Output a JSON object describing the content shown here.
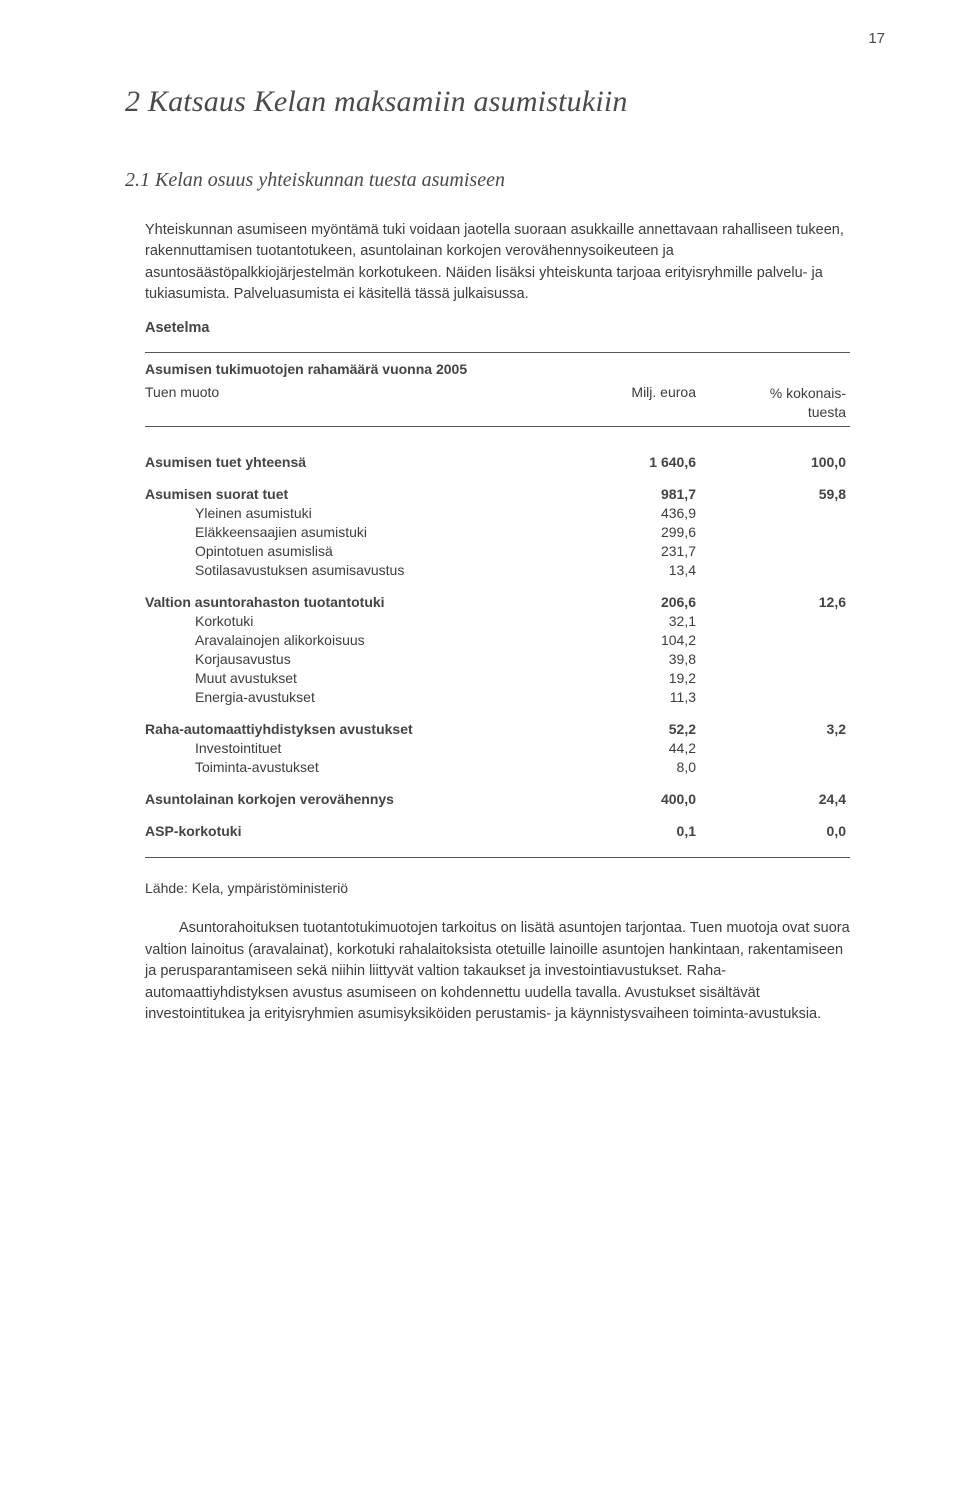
{
  "page_number": "17",
  "chapter_title": "2   Katsaus Kelan maksamiin asumistukiin",
  "section_title": "2.1 Kelan osuus yhteiskunnan tuesta asumiseen",
  "paragraph_1": "Yhteiskunnan asumiseen myöntämä tuki voidaan jaotella suoraan asukkaille annettavaan rahalliseen tukeen, rakennuttamisen tuotantotukeen, asuntolainan korkojen verovähennysoikeuteen ja asuntosäästöpalkkiojärjestelmän korkotukeen. Näiden lisäksi yhteiskunta tarjoaa erityisryhmille palvelu- ja tukiasumista. Palveluasumista ei käsitellä tässä julkaisussa.",
  "asetelma_label": "Asetelma",
  "table": {
    "caption": "Asumisen tukimuotojen rahamäärä vuonna 2005",
    "col_label": "Tuen muoto",
    "col_v1": "Milj. euroa",
    "col_v2_line1": "% kokonais-",
    "col_v2_line2": "tuesta",
    "groups": [
      {
        "bold": true,
        "label": "Asumisen tuet yhteensä",
        "v1": "1 640,6",
        "v2": "100,0",
        "rows": []
      },
      {
        "bold": true,
        "label": "Asumisen suorat tuet",
        "v1": "981,7",
        "v2": "59,8",
        "rows": [
          {
            "label": "Yleinen asumistuki",
            "v1": "436,9",
            "v2": ""
          },
          {
            "label": "Eläkkeensaajien asumistuki",
            "v1": "299,6",
            "v2": ""
          },
          {
            "label": "Opintotuen asumislisä",
            "v1": "231,7",
            "v2": ""
          },
          {
            "label": "Sotilasavustuksen asumisavustus",
            "v1": "13,4",
            "v2": ""
          }
        ]
      },
      {
        "bold": true,
        "label": "Valtion asuntorahaston tuotantotuki",
        "v1": "206,6",
        "v2": "12,6",
        "rows": [
          {
            "label": "Korkotuki",
            "v1": "32,1",
            "v2": ""
          },
          {
            "label": "Aravalainojen alikorkoisuus",
            "v1": "104,2",
            "v2": ""
          },
          {
            "label": "Korjausavustus",
            "v1": "39,8",
            "v2": ""
          },
          {
            "label": "Muut avustukset",
            "v1": "19,2",
            "v2": ""
          },
          {
            "label": "Energia-avustukset",
            "v1": "11,3",
            "v2": ""
          }
        ]
      },
      {
        "bold": true,
        "label": "Raha-automaattiyhdistyksen avustukset",
        "v1": "52,2",
        "v2": "3,2",
        "rows": [
          {
            "label": "Investointituet",
            "v1": "44,2",
            "v2": ""
          },
          {
            "label": "Toiminta-avustukset",
            "v1": "8,0",
            "v2": ""
          }
        ]
      },
      {
        "bold": true,
        "label": "Asuntolainan korkojen verovähennys",
        "v1": "400,0",
        "v2": "24,4",
        "rows": []
      },
      {
        "bold": true,
        "label": "ASP-korkotuki",
        "v1": "0,1",
        "v2": "0,0",
        "rows": []
      }
    ]
  },
  "source_line": "Lähde: Kela, ympäristöministeriö",
  "paragraph_2": "Asuntorahoituksen tuotantotukimuotojen tarkoitus on lisätä asuntojen tarjontaa. Tuen muotoja ovat suora valtion lainoitus (aravalainat), korkotuki rahalaitoksista otetuille lainoille asuntojen hankintaan, rakentamiseen ja perusparantamiseen sekä niihin liittyvät valtion takaukset ja investointiavustukset. Raha-automaattiyhdistyksen avustus asumiseen on kohdennettu uudella tavalla. Avustukset sisältävät investointitukea ja erityisryhmien asumisyksiköiden perustamis- ja käynnistysvaiheen toiminta-avustuksia."
}
